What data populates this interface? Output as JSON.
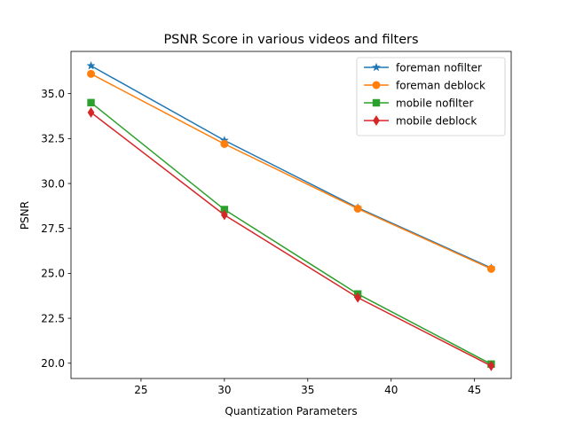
{
  "chart_data": {
    "type": "line",
    "title": "PSNR Score in various videos and filters",
    "xlabel": "Quantization Parameters",
    "ylabel": "PSNR",
    "xlim": [
      20.8,
      47.2
    ],
    "ylim": [
      19.15,
      37.35
    ],
    "xticks": [
      25,
      30,
      35,
      40,
      45
    ],
    "xtick_labels": [
      "25",
      "30",
      "35",
      "40",
      "45"
    ],
    "yticks": [
      20.0,
      22.5,
      25.0,
      27.5,
      30.0,
      32.5,
      35.0
    ],
    "ytick_labels": [
      "20.0",
      "22.5",
      "25.0",
      "27.5",
      "30.0",
      "32.5",
      "35.0"
    ],
    "grid": false,
    "legend_position": "upper right",
    "x": [
      22,
      30,
      38,
      46
    ],
    "series": [
      {
        "name": "foreman nofilter",
        "color": "#1f77b4",
        "marker": "star",
        "values": [
          36.55,
          32.4,
          28.65,
          25.3
        ]
      },
      {
        "name": "foreman deblock",
        "color": "#ff7f0e",
        "marker": "circle",
        "values": [
          36.1,
          32.2,
          28.6,
          25.25
        ]
      },
      {
        "name": "mobile nofilter",
        "color": "#2ca02c",
        "marker": "square",
        "values": [
          34.5,
          28.55,
          23.85,
          19.95
        ]
      },
      {
        "name": "mobile deblock",
        "color": "#d62728",
        "marker": "diamond",
        "values": [
          33.95,
          28.25,
          23.65,
          19.85
        ]
      }
    ]
  }
}
